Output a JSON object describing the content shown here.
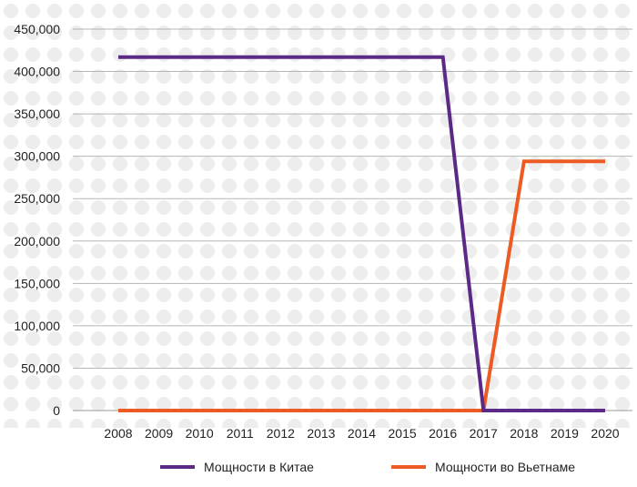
{
  "chart_data": {
    "type": "line",
    "title": "",
    "xlabel": "",
    "ylabel": "",
    "x": [
      2008,
      2009,
      2010,
      2011,
      2012,
      2013,
      2014,
      2015,
      2016,
      2017,
      2018,
      2019,
      2020
    ],
    "x_tick_labels": [
      "2008",
      "2009",
      "2010",
      "2011",
      "2012",
      "2013",
      "2014",
      "2015",
      "2016",
      "2017",
      "2018",
      "2019",
      "2020"
    ],
    "ylim": [
      0,
      450000
    ],
    "y_ticks": [
      0,
      50000,
      100000,
      150000,
      200000,
      250000,
      300000,
      350000,
      400000,
      450000
    ],
    "y_tick_labels": [
      "0",
      "50,000",
      "100,000",
      "150,000",
      "200,000",
      "250,000",
      "300,000",
      "350,000",
      "400,000",
      "450,000"
    ],
    "grid": "horizontal",
    "legend_position": "bottom",
    "series": [
      {
        "name": "Мощности в Китае",
        "color": "#5b2a86",
        "values": [
          417000,
          417000,
          417000,
          417000,
          417000,
          417000,
          417000,
          417000,
          417000,
          0,
          0,
          0,
          0
        ]
      },
      {
        "name": "Мощности во Вьетнаме",
        "color": "#ee5a24",
        "values": [
          0,
          0,
          0,
          0,
          0,
          0,
          0,
          0,
          0,
          0,
          294000,
          294000,
          294000
        ]
      }
    ]
  }
}
